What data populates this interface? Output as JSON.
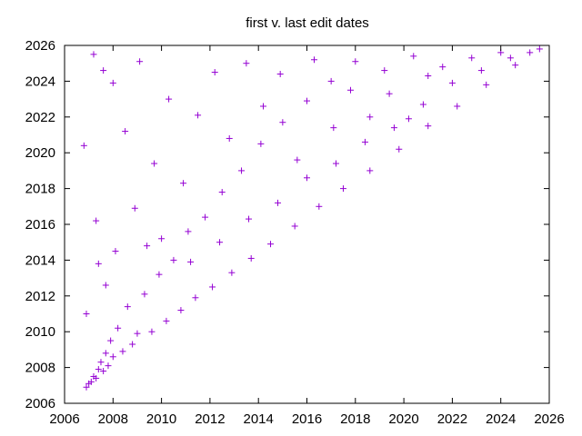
{
  "chart_data": {
    "type": "scatter",
    "title": "first v. last edit dates",
    "xlabel": "",
    "ylabel": "",
    "xlim": [
      2006,
      2026
    ],
    "ylim": [
      2006,
      2026
    ],
    "xticks": [
      "2006",
      "2008",
      "2010",
      "2012",
      "2014",
      "2016",
      "2018",
      "2020",
      "2022",
      "2024",
      "2026"
    ],
    "yticks": [
      "2006",
      "2008",
      "2010",
      "2012",
      "2014",
      "2016",
      "2018",
      "2020",
      "2022",
      "2024",
      "2026"
    ],
    "grid": false,
    "marker": "+",
    "color": "#9400d3",
    "series": [
      {
        "values": [
          [
            2006.9,
            2006.9
          ],
          [
            2007.0,
            2007.1
          ],
          [
            2007.1,
            2007.2
          ],
          [
            2007.2,
            2007.5
          ],
          [
            2007.3,
            2007.4
          ],
          [
            2007.4,
            2007.9
          ],
          [
            2007.5,
            2008.3
          ],
          [
            2007.6,
            2007.8
          ],
          [
            2007.7,
            2008.8
          ],
          [
            2007.8,
            2008.1
          ],
          [
            2007.9,
            2009.5
          ],
          [
            2008.0,
            2008.6
          ],
          [
            2008.2,
            2010.2
          ],
          [
            2008.4,
            2008.9
          ],
          [
            2008.6,
            2011.4
          ],
          [
            2008.8,
            2009.3
          ],
          [
            2009.0,
            2009.9
          ],
          [
            2009.3,
            2012.1
          ],
          [
            2009.6,
            2010.0
          ],
          [
            2009.9,
            2013.2
          ],
          [
            2010.2,
            2010.6
          ],
          [
            2010.5,
            2014.0
          ],
          [
            2010.8,
            2011.2
          ],
          [
            2011.1,
            2015.6
          ],
          [
            2011.4,
            2011.9
          ],
          [
            2011.8,
            2016.4
          ],
          [
            2012.1,
            2012.5
          ],
          [
            2012.5,
            2017.8
          ],
          [
            2012.9,
            2013.3
          ],
          [
            2013.3,
            2019.0
          ],
          [
            2013.7,
            2014.1
          ],
          [
            2014.1,
            2020.5
          ],
          [
            2014.5,
            2014.9
          ],
          [
            2015.0,
            2021.7
          ],
          [
            2015.5,
            2015.9
          ],
          [
            2016.0,
            2022.9
          ],
          [
            2016.5,
            2017.0
          ],
          [
            2017.0,
            2024.0
          ],
          [
            2017.5,
            2018.0
          ],
          [
            2018.0,
            2025.1
          ],
          [
            2018.6,
            2019.0
          ],
          [
            2019.2,
            2024.6
          ],
          [
            2019.8,
            2020.2
          ],
          [
            2020.4,
            2025.4
          ],
          [
            2021.0,
            2021.5
          ],
          [
            2021.6,
            2024.8
          ],
          [
            2022.2,
            2022.6
          ],
          [
            2022.8,
            2025.3
          ],
          [
            2023.4,
            2023.8
          ],
          [
            2024.0,
            2025.6
          ],
          [
            2024.6,
            2024.9
          ],
          [
            2025.2,
            2025.6
          ],
          [
            2025.6,
            2025.8
          ],
          [
            2007.2,
            2025.5
          ],
          [
            2007.6,
            2024.6
          ],
          [
            2008.0,
            2023.9
          ],
          [
            2008.5,
            2021.2
          ],
          [
            2009.1,
            2025.1
          ],
          [
            2009.7,
            2019.4
          ],
          [
            2010.3,
            2023.0
          ],
          [
            2010.9,
            2018.3
          ],
          [
            2011.5,
            2022.1
          ],
          [
            2012.2,
            2024.5
          ],
          [
            2012.8,
            2020.8
          ],
          [
            2013.5,
            2025.0
          ],
          [
            2014.2,
            2022.6
          ],
          [
            2014.9,
            2024.4
          ],
          [
            2015.6,
            2019.6
          ],
          [
            2016.3,
            2025.2
          ],
          [
            2017.1,
            2021.4
          ],
          [
            2017.8,
            2023.5
          ],
          [
            2018.6,
            2022.0
          ],
          [
            2019.4,
            2023.3
          ],
          [
            2020.2,
            2021.9
          ],
          [
            2021.0,
            2024.3
          ],
          [
            2006.8,
            2020.4
          ],
          [
            2006.9,
            2011.0
          ],
          [
            2007.3,
            2016.2
          ],
          [
            2007.4,
            2013.8
          ],
          [
            2007.7,
            2012.6
          ],
          [
            2008.1,
            2014.5
          ],
          [
            2008.9,
            2016.9
          ],
          [
            2009.4,
            2014.8
          ],
          [
            2010.0,
            2015.2
          ],
          [
            2011.2,
            2013.9
          ],
          [
            2012.4,
            2015.0
          ],
          [
            2013.6,
            2016.3
          ],
          [
            2014.8,
            2017.2
          ],
          [
            2016.0,
            2018.6
          ],
          [
            2017.2,
            2019.4
          ],
          [
            2018.4,
            2020.6
          ],
          [
            2019.6,
            2021.4
          ],
          [
            2020.8,
            2022.7
          ],
          [
            2022.0,
            2023.9
          ],
          [
            2023.2,
            2024.6
          ],
          [
            2024.4,
            2025.3
          ]
        ]
      }
    ]
  }
}
